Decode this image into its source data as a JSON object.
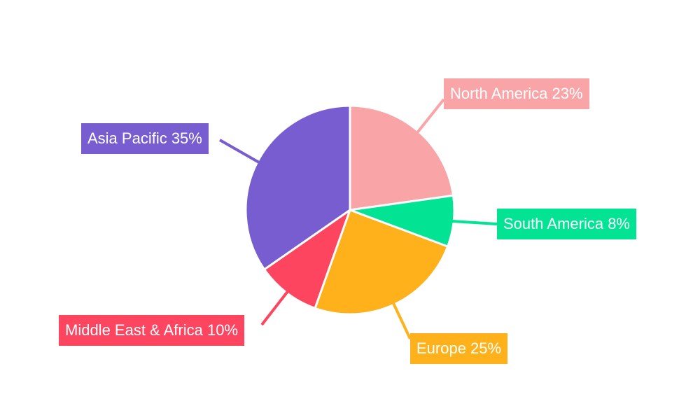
{
  "chart_data": {
    "type": "pie",
    "title": "",
    "start_angle": "top",
    "direction": "clockwise",
    "slices": [
      {
        "label": "North America 23%",
        "name": "North America",
        "value": 23,
        "color": "#f9a5a8"
      },
      {
        "label": "South America 8%",
        "name": "South America",
        "value": 8,
        "color": "#03e394"
      },
      {
        "label": "Europe 25%",
        "name": "Europe",
        "value": 25,
        "color": "#feb11a"
      },
      {
        "label": "Middle East & Africa 10%",
        "name": "Middle East & Africa",
        "value": 10,
        "color": "#fe4560"
      },
      {
        "label": "Asia Pacific 35%",
        "name": "Asia Pacific",
        "value": 35,
        "color": "#775dd0"
      }
    ]
  }
}
